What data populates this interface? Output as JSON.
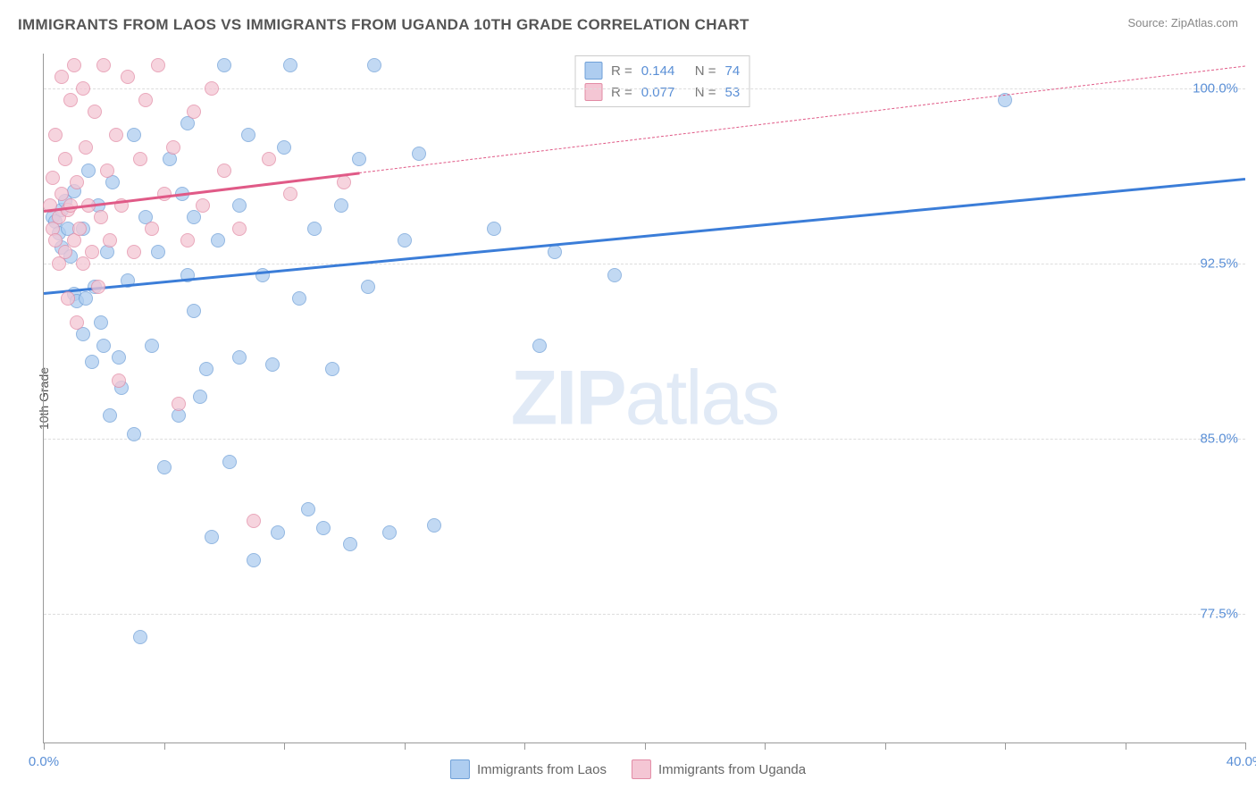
{
  "header": {
    "title": "IMMIGRANTS FROM LAOS VS IMMIGRANTS FROM UGANDA 10TH GRADE CORRELATION CHART",
    "source_prefix": "Source: ",
    "source_name": "ZipAtlas.com"
  },
  "chart": {
    "type": "scatter",
    "y_axis_label": "10th Grade",
    "watermark_bold": "ZIP",
    "watermark_rest": "atlas",
    "background_color": "#ffffff",
    "grid_color": "#dddddd",
    "axis_color": "#999999",
    "tick_label_color": "#5a8fd6",
    "x_range": [
      0.0,
      40.0
    ],
    "y_range": [
      72.0,
      101.5
    ],
    "y_ticks": [
      {
        "v": 100.0,
        "label": "100.0%"
      },
      {
        "v": 92.5,
        "label": "92.5%"
      },
      {
        "v": 85.0,
        "label": "85.0%"
      },
      {
        "v": 77.5,
        "label": "77.5%"
      }
    ],
    "x_tick_positions": [
      0,
      4,
      8,
      12,
      16,
      20,
      24,
      28,
      32,
      36,
      40
    ],
    "x_tick_labels": [
      {
        "v": 0.0,
        "label": "0.0%"
      },
      {
        "v": 40.0,
        "label": "40.0%"
      }
    ],
    "series": [
      {
        "name": "Immigrants from Laos",
        "color_fill": "#aecdf0",
        "color_stroke": "#6fa0d8",
        "R_label": "R =",
        "R": "0.144",
        "N_label": "N =",
        "N": "74",
        "trend": {
          "x1": 0,
          "y1": 91.3,
          "x2": 40,
          "y2": 96.2,
          "color": "#3b7dd8",
          "solid_to_x": 40
        },
        "points": [
          [
            0.3,
            94.5
          ],
          [
            0.4,
            94.3
          ],
          [
            0.5,
            93.8
          ],
          [
            0.6,
            94.8
          ],
          [
            0.6,
            93.2
          ],
          [
            0.7,
            95.2
          ],
          [
            0.8,
            94.0
          ],
          [
            0.9,
            92.8
          ],
          [
            1.0,
            91.2
          ],
          [
            1.0,
            95.6
          ],
          [
            1.1,
            90.9
          ],
          [
            1.3,
            94.0
          ],
          [
            1.3,
            89.5
          ],
          [
            1.4,
            91.0
          ],
          [
            1.5,
            96.5
          ],
          [
            1.6,
            88.3
          ],
          [
            1.7,
            91.5
          ],
          [
            1.8,
            95.0
          ],
          [
            1.9,
            90.0
          ],
          [
            2.0,
            89.0
          ],
          [
            2.1,
            93.0
          ],
          [
            2.2,
            86.0
          ],
          [
            2.3,
            96.0
          ],
          [
            2.5,
            88.5
          ],
          [
            2.6,
            87.2
          ],
          [
            2.8,
            91.8
          ],
          [
            3.0,
            85.2
          ],
          [
            3.0,
            98.0
          ],
          [
            3.2,
            76.5
          ],
          [
            3.4,
            94.5
          ],
          [
            3.6,
            89.0
          ],
          [
            3.8,
            93.0
          ],
          [
            4.0,
            83.8
          ],
          [
            4.2,
            97.0
          ],
          [
            4.5,
            86.0
          ],
          [
            4.6,
            95.5
          ],
          [
            4.8,
            92.0
          ],
          [
            4.8,
            98.5
          ],
          [
            5.0,
            90.5
          ],
          [
            5.0,
            94.5
          ],
          [
            5.2,
            86.8
          ],
          [
            5.4,
            88.0
          ],
          [
            5.6,
            80.8
          ],
          [
            5.8,
            93.5
          ],
          [
            6.0,
            101.0
          ],
          [
            6.2,
            84.0
          ],
          [
            6.5,
            88.5
          ],
          [
            6.5,
            95.0
          ],
          [
            6.8,
            98.0
          ],
          [
            7.0,
            79.8
          ],
          [
            7.3,
            92.0
          ],
          [
            7.6,
            88.2
          ],
          [
            7.8,
            81.0
          ],
          [
            8.0,
            97.5
          ],
          [
            8.2,
            101.0
          ],
          [
            8.5,
            91.0
          ],
          [
            8.8,
            82.0
          ],
          [
            9.0,
            94.0
          ],
          [
            9.3,
            81.2
          ],
          [
            9.6,
            88.0
          ],
          [
            9.9,
            95.0
          ],
          [
            10.2,
            80.5
          ],
          [
            10.5,
            97.0
          ],
          [
            10.8,
            91.5
          ],
          [
            11.0,
            101.0
          ],
          [
            11.5,
            81.0
          ],
          [
            12.0,
            93.5
          ],
          [
            12.5,
            97.2
          ],
          [
            13.0,
            81.3
          ],
          [
            15.0,
            94.0
          ],
          [
            16.5,
            89.0
          ],
          [
            17.0,
            93.0
          ],
          [
            19.0,
            92.0
          ],
          [
            32.0,
            99.5
          ]
        ]
      },
      {
        "name": "Immigrants from Uganda",
        "color_fill": "#f4c6d4",
        "color_stroke": "#e28ba5",
        "R_label": "R =",
        "R": "0.077",
        "N_label": "N =",
        "N": "53",
        "trend": {
          "x1": 0,
          "y1": 94.8,
          "x2": 40,
          "y2": 101.0,
          "color": "#e05a87",
          "solid_to_x": 10.5
        },
        "points": [
          [
            0.2,
            95.0
          ],
          [
            0.3,
            94.0
          ],
          [
            0.3,
            96.2
          ],
          [
            0.4,
            93.5
          ],
          [
            0.4,
            98.0
          ],
          [
            0.5,
            94.5
          ],
          [
            0.5,
            92.5
          ],
          [
            0.6,
            95.5
          ],
          [
            0.6,
            100.5
          ],
          [
            0.7,
            93.0
          ],
          [
            0.7,
            97.0
          ],
          [
            0.8,
            94.8
          ],
          [
            0.8,
            91.0
          ],
          [
            0.9,
            99.5
          ],
          [
            0.9,
            95.0
          ],
          [
            1.0,
            93.5
          ],
          [
            1.0,
            101.0
          ],
          [
            1.1,
            96.0
          ],
          [
            1.1,
            90.0
          ],
          [
            1.2,
            94.0
          ],
          [
            1.3,
            100.0
          ],
          [
            1.3,
            92.5
          ],
          [
            1.4,
            97.5
          ],
          [
            1.5,
            95.0
          ],
          [
            1.6,
            93.0
          ],
          [
            1.7,
            99.0
          ],
          [
            1.8,
            91.5
          ],
          [
            1.9,
            94.5
          ],
          [
            2.0,
            101.0
          ],
          [
            2.1,
            96.5
          ],
          [
            2.2,
            93.5
          ],
          [
            2.4,
            98.0
          ],
          [
            2.5,
            87.5
          ],
          [
            2.6,
            95.0
          ],
          [
            2.8,
            100.5
          ],
          [
            3.0,
            93.0
          ],
          [
            3.2,
            97.0
          ],
          [
            3.4,
            99.5
          ],
          [
            3.6,
            94.0
          ],
          [
            3.8,
            101.0
          ],
          [
            4.0,
            95.5
          ],
          [
            4.3,
            97.5
          ],
          [
            4.5,
            86.5
          ],
          [
            4.8,
            93.5
          ],
          [
            5.0,
            99.0
          ],
          [
            5.3,
            95.0
          ],
          [
            5.6,
            100.0
          ],
          [
            6.0,
            96.5
          ],
          [
            6.5,
            94.0
          ],
          [
            7.0,
            81.5
          ],
          [
            7.5,
            97.0
          ],
          [
            8.2,
            95.5
          ],
          [
            10.0,
            96.0
          ]
        ]
      }
    ]
  },
  "bottom_legend": [
    {
      "label": "Immigrants from Laos",
      "fill": "#aecdf0",
      "stroke": "#6fa0d8"
    },
    {
      "label": "Immigrants from Uganda",
      "fill": "#f4c6d4",
      "stroke": "#e28ba5"
    }
  ]
}
